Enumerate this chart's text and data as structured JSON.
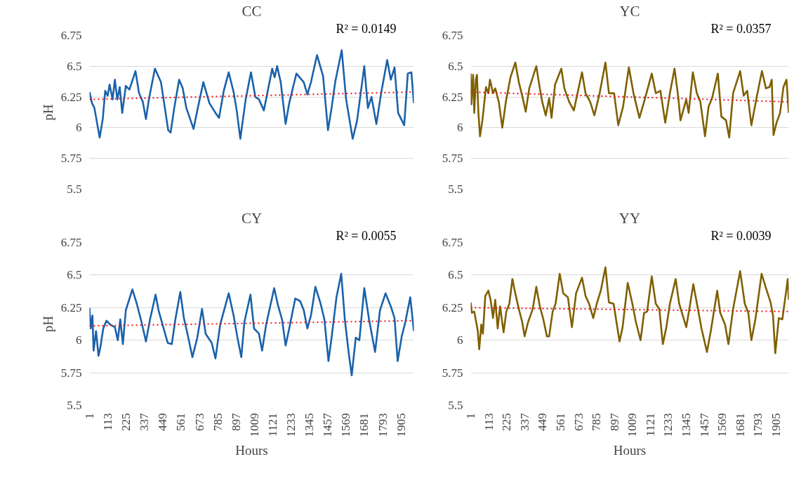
{
  "chart_data": [
    {
      "type": "line",
      "title": "CC",
      "ylabel": "pH",
      "xlim": [
        1,
        1984
      ],
      "ylim": [
        5.5,
        6.75
      ],
      "xticks": [
        1,
        113,
        225,
        337,
        449,
        561,
        673,
        785,
        897,
        1009,
        1121,
        1233,
        1345,
        1457,
        1569,
        1681,
        1793,
        1905
      ],
      "yticks": [
        5.5,
        5.75,
        6,
        6.25,
        6.5,
        6.75
      ],
      "grid": "y",
      "tick_labels": "y",
      "annotations": [
        "R² = 0.0149"
      ],
      "series": [
        {
          "color": "#1a62aa",
          "line_style": "solid",
          "x": [
            1,
            16,
            31,
            63,
            82,
            97,
            112,
            124,
            142,
            156,
            171,
            186,
            201,
            223,
            245,
            282,
            304,
            327,
            346,
            364,
            401,
            438,
            482,
            497,
            519,
            549,
            571,
            593,
            637,
            660,
            697,
            734,
            771,
            793,
            822,
            852,
            882,
            901,
            923,
            956,
            988,
            1015,
            1037,
            1067,
            1118,
            1133,
            1148,
            1170,
            1200,
            1222,
            1266,
            1311,
            1333,
            1355,
            1392,
            1429,
            1459,
            1481,
            1503,
            1543,
            1570,
            1610,
            1636,
            1681,
            1703,
            1725,
            1755,
            1784,
            1821,
            1843,
            1866,
            1888,
            1925,
            1947,
            1969,
            1984
          ],
          "values": [
            6.29,
            6.2,
            6.16,
            5.92,
            6.07,
            6.3,
            6.26,
            6.35,
            6.23,
            6.39,
            6.23,
            6.33,
            6.12,
            6.34,
            6.31,
            6.46,
            6.28,
            6.21,
            6.07,
            6.23,
            6.48,
            6.37,
            5.98,
            5.96,
            6.16,
            6.39,
            6.32,
            6.16,
            5.99,
            6.14,
            6.37,
            6.2,
            6.12,
            6.08,
            6.3,
            6.45,
            6.29,
            6.14,
            5.91,
            6.23,
            6.45,
            6.25,
            6.23,
            6.14,
            6.48,
            6.41,
            6.5,
            6.37,
            6.03,
            6.2,
            6.44,
            6.37,
            6.27,
            6.37,
            6.59,
            6.42,
            5.98,
            6.16,
            6.37,
            6.63,
            6.23,
            5.91,
            6.05,
            6.5,
            6.16,
            6.25,
            6.03,
            6.28,
            6.55,
            6.39,
            6.49,
            6.12,
            6.02,
            6.44,
            6.45,
            6.2
          ]
        },
        {
          "color": "#e8141c",
          "line_style": "dotted",
          "x": [
            1,
            1984
          ],
          "values": [
            6.23,
            6.29
          ]
        }
      ]
    },
    {
      "type": "line",
      "title": "YC",
      "xlim": [
        1,
        1984
      ],
      "ylim": [
        5.5,
        6.75
      ],
      "xticks": [
        1,
        113,
        225,
        337,
        449,
        561,
        673,
        785,
        897,
        1009,
        1121,
        1233,
        1345,
        1457,
        1569,
        1681,
        1793,
        1905
      ],
      "yticks": [
        5.5,
        5.75,
        6,
        6.25,
        6.5,
        6.75
      ],
      "grid": "y",
      "tick_labels": "y",
      "annotations": [
        "R² = 0.0357"
      ],
      "series": [
        {
          "color": "#7f6000",
          "line_style": "solid",
          "x": [
            1,
            5,
            16,
            23,
            33,
            40,
            49,
            59,
            74,
            96,
            111,
            121,
            140,
            154,
            176,
            198,
            220,
            249,
            279,
            301,
            322,
            344,
            366,
            410,
            432,
            447,
            469,
            490,
            505,
            527,
            566,
            585,
            615,
            644,
            695,
            717,
            746,
            772,
            805,
            841,
            863,
            895,
            921,
            951,
            987,
            1016,
            1053,
            1082,
            1130,
            1155,
            1184,
            1214,
            1243,
            1272,
            1294,
            1309,
            1345,
            1360,
            1386,
            1411,
            1433,
            1462,
            1484,
            1506,
            1542,
            1564,
            1593,
            1613,
            1637,
            1681,
            1703,
            1725,
            1751,
            1783,
            1817,
            1842,
            1864,
            1878,
            1889,
            1908,
            1930,
            1951,
            1970,
            1984
          ],
          "values": [
            6.44,
            6.19,
            6.43,
            6.12,
            6.39,
            6.43,
            6.12,
            5.93,
            6.06,
            6.33,
            6.28,
            6.39,
            6.28,
            6.32,
            6.21,
            6.0,
            6.21,
            6.41,
            6.53,
            6.37,
            6.26,
            6.13,
            6.32,
            6.5,
            6.32,
            6.21,
            6.1,
            6.24,
            6.08,
            6.35,
            6.48,
            6.32,
            6.21,
            6.14,
            6.45,
            6.28,
            6.21,
            6.1,
            6.28,
            6.53,
            6.28,
            6.28,
            6.02,
            6.17,
            6.49,
            6.28,
            6.08,
            6.21,
            6.44,
            6.28,
            6.3,
            6.04,
            6.28,
            6.48,
            6.26,
            6.06,
            6.23,
            6.12,
            6.45,
            6.28,
            6.21,
            5.93,
            6.17,
            6.24,
            6.44,
            6.09,
            6.06,
            5.92,
            6.28,
            6.46,
            6.26,
            6.3,
            6.02,
            6.24,
            6.46,
            6.32,
            6.33,
            6.39,
            5.94,
            6.04,
            6.12,
            6.33,
            6.39,
            6.12
          ]
        },
        {
          "color": "#e8141c",
          "line_style": "dotted",
          "x": [
            1,
            1984
          ],
          "values": [
            6.29,
            6.21
          ]
        }
      ]
    },
    {
      "type": "line",
      "title": "CY",
      "ylabel": "pH",
      "xlabel": "Hours",
      "xlim": [
        1,
        1984
      ],
      "ylim": [
        5.5,
        6.75
      ],
      "xticks": [
        1,
        113,
        225,
        337,
        449,
        561,
        673,
        785,
        897,
        1009,
        1121,
        1233,
        1345,
        1457,
        1569,
        1681,
        1793,
        1905
      ],
      "yticks": [
        5.5,
        5.75,
        6,
        6.25,
        6.5,
        6.75
      ],
      "grid": "y",
      "annotations": [
        "R² = 0.0055"
      ],
      "series": [
        {
          "color": "#1a62aa",
          "line_style": "solid",
          "x": [
            1,
            8,
            19,
            26,
            41,
            56,
            68,
            85,
            105,
            127,
            156,
            174,
            189,
            205,
            223,
            263,
            290,
            319,
            346,
            371,
            405,
            423,
            452,
            479,
            504,
            526,
            556,
            578,
            600,
            630,
            660,
            689,
            711,
            748,
            771,
            800,
            852,
            882,
            904,
            929,
            948,
            985,
            1007,
            1037,
            1056,
            1081,
            1130,
            1155,
            1178,
            1200,
            1222,
            1259,
            1289,
            1311,
            1333,
            1355,
            1382,
            1414,
            1437,
            1462,
            1481,
            1511,
            1540,
            1562,
            1585,
            1604,
            1629,
            1651,
            1681,
            1710,
            1747,
            1777,
            1811,
            1843,
            1866,
            1885,
            1910,
            1932,
            1962,
            1984
          ],
          "values": [
            6.25,
            6.09,
            6.19,
            5.92,
            6.07,
            5.88,
            5.95,
            6.09,
            6.15,
            6.12,
            6.1,
            6.0,
            6.16,
            5.97,
            6.23,
            6.39,
            6.28,
            6.14,
            5.99,
            6.16,
            6.35,
            6.23,
            6.1,
            5.98,
            5.97,
            6.16,
            6.37,
            6.17,
            6.05,
            5.87,
            6.02,
            6.24,
            6.05,
            5.98,
            5.86,
            6.12,
            6.36,
            6.19,
            6.03,
            5.87,
            6.14,
            6.35,
            6.09,
            6.05,
            5.92,
            6.12,
            6.4,
            6.26,
            6.16,
            5.96,
            6.09,
            6.32,
            6.3,
            6.23,
            6.09,
            6.19,
            6.41,
            6.28,
            6.16,
            5.84,
            6.02,
            6.33,
            6.51,
            6.16,
            5.91,
            5.73,
            6.02,
            6.0,
            6.4,
            6.16,
            5.91,
            6.23,
            6.36,
            6.26,
            6.17,
            5.84,
            6.03,
            6.14,
            6.33,
            6.07
          ]
        },
        {
          "color": "#e8141c",
          "line_style": "dotted",
          "x": [
            1,
            1984
          ],
          "values": [
            6.11,
            6.15
          ]
        }
      ]
    },
    {
      "type": "line",
      "title": "YY",
      "xlabel": "Hours",
      "xlim": [
        1,
        1984
      ],
      "ylim": [
        5.5,
        6.75
      ],
      "xticks": [
        1,
        113,
        225,
        337,
        449,
        561,
        673,
        785,
        897,
        1009,
        1121,
        1233,
        1345,
        1457,
        1569,
        1681,
        1793,
        1905
      ],
      "yticks": [
        5.5,
        5.75,
        6,
        6.25,
        6.5,
        6.75
      ],
      "grid": "y",
      "annotations": [
        "R² = 0.0039"
      ],
      "series": [
        {
          "color": "#7f6000",
          "line_style": "solid",
          "x": [
            1,
            8,
            23,
            38,
            45,
            54,
            67,
            77,
            92,
            111,
            125,
            140,
            154,
            169,
            184,
            206,
            223,
            242,
            261,
            279,
            301,
            322,
            337,
            359,
            388,
            410,
            432,
            454,
            476,
            490,
            512,
            530,
            556,
            578,
            607,
            632,
            658,
            695,
            717,
            739,
            765,
            787,
            812,
            841,
            863,
            892,
            929,
            948,
            980,
            1009,
            1031,
            1060,
            1082,
            1101,
            1130,
            1155,
            1177,
            1199,
            1221,
            1243,
            1279,
            1301,
            1345,
            1367,
            1389,
            1418,
            1440,
            1474,
            1498,
            1538,
            1557,
            1587,
            1608,
            1637,
            1681,
            1710,
            1732,
            1751,
            1776,
            1815,
            1842,
            1871,
            1886,
            1900,
            1922,
            1944,
            1966,
            1978,
            1984
          ],
          "values": [
            6.29,
            6.21,
            6.22,
            6.12,
            6.07,
            5.93,
            6.12,
            6.05,
            6.34,
            6.38,
            6.31,
            6.17,
            6.31,
            6.09,
            6.26,
            6.06,
            6.22,
            6.28,
            6.47,
            6.36,
            6.24,
            6.14,
            6.03,
            6.14,
            6.24,
            6.41,
            6.26,
            6.16,
            6.03,
            6.03,
            6.22,
            6.28,
            6.51,
            6.36,
            6.33,
            6.1,
            6.36,
            6.48,
            6.34,
            6.28,
            6.17,
            6.28,
            6.38,
            6.56,
            6.29,
            6.28,
            5.99,
            6.1,
            6.44,
            6.28,
            6.14,
            6.0,
            6.21,
            6.22,
            6.49,
            6.28,
            6.24,
            5.97,
            6.1,
            6.28,
            6.47,
            6.28,
            6.1,
            6.26,
            6.43,
            6.24,
            6.09,
            5.91,
            6.07,
            6.38,
            6.21,
            6.12,
            5.97,
            6.24,
            6.53,
            6.28,
            6.21,
            6.0,
            6.16,
            6.51,
            6.4,
            6.29,
            6.19,
            5.9,
            6.17,
            6.16,
            6.36,
            6.47,
            6.31
          ]
        },
        {
          "color": "#e8141c",
          "line_style": "dotted",
          "x": [
            1,
            1984
          ],
          "values": [
            6.25,
            6.22
          ]
        }
      ]
    }
  ]
}
